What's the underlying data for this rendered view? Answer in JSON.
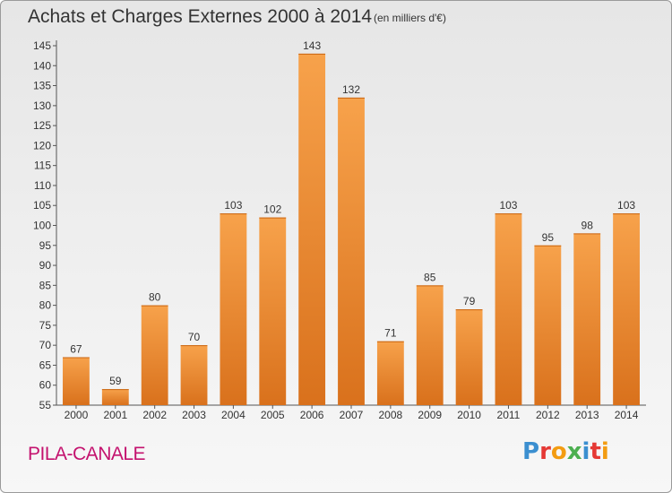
{
  "header": {
    "title": "Achats et Charges Externes 2000 à 2014",
    "subtitle": "(en milliers d'€)"
  },
  "footer": {
    "commune": "PILA-CANALE",
    "logo_letters": [
      "P",
      "r",
      "o",
      "x",
      "i",
      "t",
      "i"
    ],
    "logo_colors": [
      "#3b8fd0",
      "#e53935",
      "#f39c12",
      "#4caf50",
      "#3b8fd0",
      "#e53935",
      "#f39c12"
    ]
  },
  "colors": {
    "bar_top": "#f7a24b",
    "bar_bottom": "#d9711c",
    "commune": "#c4126e"
  },
  "chart_data": {
    "type": "bar",
    "categories": [
      "2000",
      "2001",
      "2002",
      "2003",
      "2004",
      "2005",
      "2006",
      "2007",
      "2008",
      "2009",
      "2010",
      "2011",
      "2012",
      "2013",
      "2014"
    ],
    "values": [
      67,
      59,
      80,
      70,
      103,
      102,
      143,
      132,
      71,
      85,
      79,
      103,
      95,
      98,
      103
    ],
    "data_labels": [
      "67",
      "59",
      "80",
      "70",
      "103",
      "102",
      "143",
      "132",
      "71",
      "85",
      "79",
      "103",
      "95",
      "98",
      "103"
    ],
    "y_ticks": [
      55,
      60,
      65,
      70,
      75,
      80,
      85,
      90,
      95,
      100,
      105,
      110,
      115,
      120,
      125,
      130,
      135,
      140,
      145
    ],
    "ylim": [
      55,
      145
    ],
    "grid": false,
    "title": "Achats et Charges Externes 2000 à 2014",
    "xlabel": "",
    "ylabel": ""
  }
}
